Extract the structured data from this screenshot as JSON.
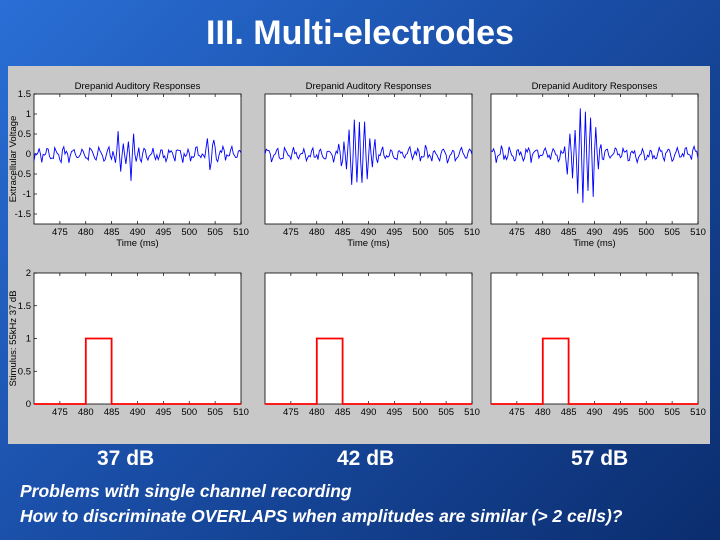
{
  "slide": {
    "title": "III. Multi-electrodes",
    "notes": [
      "Problems with single channel recording",
      "How to discriminate OVERLAPS when amplitudes are similar (> 2 cells)?"
    ]
  },
  "chart_data": [
    {
      "type": "line",
      "panel": "top-left",
      "title": "Drepanid Auditory Responses",
      "xlabel": "Time (ms)",
      "ylabel": "Extracellular Voltage",
      "xlim": [
        470,
        510
      ],
      "ylim": [
        -1.75,
        1.5
      ],
      "xticks": [
        475,
        480,
        485,
        490,
        495,
        500,
        505,
        510
      ],
      "yticks": [
        -1.5,
        -1,
        -0.5,
        0,
        0.5,
        1,
        1.5
      ],
      "color": "#0000ff",
      "condition": "37 dB",
      "series": [
        {
          "x_start": 470,
          "x_step": 0.25,
          "values": []
        }
      ]
    },
    {
      "type": "line",
      "panel": "top-middle",
      "title": "Drepanid Auditory Responses",
      "xlabel": "Time (ms)",
      "ylabel": "",
      "xlim": [
        470,
        510
      ],
      "ylim": [
        -1.75,
        1.5
      ],
      "xticks": [
        475,
        480,
        485,
        490,
        495,
        500,
        505,
        510
      ],
      "color": "#0000ff",
      "condition": "42 dB",
      "series": [
        {
          "x_start": 470,
          "x_step": 0.25,
          "values": []
        }
      ]
    },
    {
      "type": "line",
      "panel": "top-right",
      "title": "Drepanid Auditory Responses",
      "xlabel": "Time (ms)",
      "ylabel": "",
      "xlim": [
        470,
        510
      ],
      "ylim": [
        -1.75,
        1.5
      ],
      "xticks": [
        475,
        480,
        485,
        490,
        495,
        500,
        505,
        510
      ],
      "color": "#0000ff",
      "condition": "57 dB",
      "series": [
        {
          "x_start": 470,
          "x_step": 0.25,
          "values": []
        }
      ]
    },
    {
      "type": "line",
      "panel": "bottom-left",
      "xlabel": "",
      "ylabel": "Stimulus: 55kHz 37 dB",
      "xlim": [
        470,
        510
      ],
      "ylim": [
        0,
        2
      ],
      "xticks": [
        475,
        480,
        485,
        490,
        495,
        500,
        505,
        510
      ],
      "yticks": [
        0,
        0.5,
        1,
        1.5,
        2
      ],
      "color": "#ff0000",
      "x": [
        470,
        480,
        480,
        485,
        485,
        510
      ],
      "y": [
        0,
        0,
        1,
        1,
        0,
        0
      ]
    },
    {
      "type": "line",
      "panel": "bottom-middle",
      "xlabel": "",
      "ylabel": "",
      "xlim": [
        470,
        510
      ],
      "ylim": [
        0,
        2
      ],
      "xticks": [
        475,
        480,
        485,
        490,
        495,
        500,
        505,
        510
      ],
      "color": "#ff0000",
      "x": [
        470,
        480,
        480,
        485,
        485,
        510
      ],
      "y": [
        0,
        0,
        1,
        1,
        0,
        0
      ]
    },
    {
      "type": "line",
      "panel": "bottom-right",
      "xlabel": "",
      "ylabel": "",
      "xlim": [
        470,
        510
      ],
      "ylim": [
        0,
        2
      ],
      "xticks": [
        475,
        480,
        485,
        490,
        495,
        500,
        505,
        510
      ],
      "color": "#ff0000",
      "x": [
        470,
        480,
        480,
        485,
        485,
        510
      ],
      "y": [
        0,
        0,
        1,
        1,
        0,
        0
      ]
    }
  ]
}
